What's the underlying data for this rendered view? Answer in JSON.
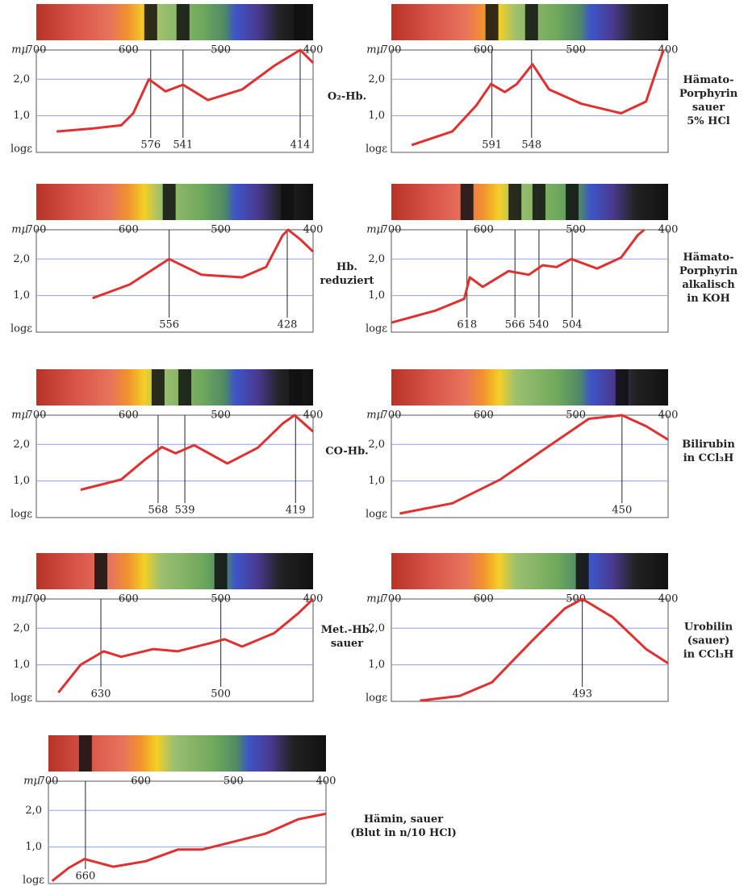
{
  "chart_data": [
    {
      "type": "line",
      "label": [
        "O₂-Hb."
      ],
      "x_label": "mμ",
      "y_label": "logε",
      "xlim": [
        700,
        400
      ],
      "xticks": [
        700,
        600,
        500,
        400
      ],
      "ylim": [
        0,
        2.8
      ],
      "yticks": [
        {
          "value": 1,
          "label": "1,0"
        },
        {
          "value": 2,
          "label": "2,0"
        }
      ],
      "color": "#e03030",
      "x": [
        678,
        640,
        608,
        595,
        578,
        560,
        541,
        514,
        477,
        442,
        414,
        400
      ],
      "values": [
        0.57,
        0.65,
        0.74,
        1.07,
        2.0,
        1.67,
        1.85,
        1.43,
        1.72,
        2.37,
        2.8,
        2.45
      ],
      "markers": [
        576,
        541,
        414
      ]
    },
    {
      "type": "line",
      "label": [
        "Hämato-",
        "Porphyrin",
        "sauer",
        "5% HCl"
      ],
      "x_label": "mμ",
      "y_label": "logε",
      "xlim": [
        700,
        400
      ],
      "xticks": [
        700,
        600,
        500,
        400
      ],
      "ylim": [
        0,
        2.8
      ],
      "yticks": [
        {
          "value": 1,
          "label": "1,0"
        },
        {
          "value": 2,
          "label": "2,0"
        }
      ],
      "color": "#e03030",
      "x": [
        678,
        634,
        608,
        592,
        577,
        564,
        547,
        529,
        494,
        451,
        424,
        411,
        405
      ],
      "values": [
        0.2,
        0.57,
        1.28,
        1.87,
        1.65,
        1.87,
        2.41,
        1.72,
        1.33,
        1.07,
        1.39,
        2.37,
        2.8
      ],
      "markers": [
        591,
        548
      ]
    },
    {
      "type": "line",
      "label": [
        "Hb.",
        "reduziert"
      ],
      "x_label": "mμ",
      "y_label": "logε",
      "xlim": [
        700,
        400
      ],
      "xticks": [
        700,
        600,
        500,
        400
      ],
      "ylim": [
        0,
        2.8
      ],
      "yticks": [
        {
          "value": 1,
          "label": "1,0"
        },
        {
          "value": 2,
          "label": "2,0"
        }
      ],
      "color": "#e03030",
      "x": [
        639,
        599,
        556,
        521,
        477,
        451,
        433,
        427,
        414,
        400
      ],
      "values": [
        0.93,
        1.3,
        2.0,
        1.57,
        1.5,
        1.78,
        2.65,
        2.8,
        2.54,
        2.2
      ],
      "markers": [
        556,
        428
      ]
    },
    {
      "type": "line",
      "label": [
        "Hämato-",
        "Porphyrin",
        "alkalisch",
        "in KOH"
      ],
      "x_label": "mμ",
      "y_label": "logε",
      "xlim": [
        700,
        400
      ],
      "xticks": [
        700,
        600,
        500,
        400
      ],
      "ylim": [
        0,
        2.8
      ],
      "yticks": [
        {
          "value": 1,
          "label": "1,0"
        },
        {
          "value": 2,
          "label": "2,0"
        }
      ],
      "color": "#e03030",
      "x": [
        700,
        652,
        621,
        615,
        601,
        573,
        551,
        536,
        521,
        505,
        477,
        451,
        433,
        426
      ],
      "values": [
        0.26,
        0.59,
        0.91,
        1.5,
        1.24,
        1.67,
        1.57,
        1.83,
        1.78,
        2.0,
        1.74,
        2.04,
        2.65,
        2.8
      ],
      "markers": [
        618,
        566,
        540,
        504
      ]
    },
    {
      "type": "line",
      "label": [
        "CO-Hb."
      ],
      "x_label": "mμ",
      "y_label": "logε",
      "xlim": [
        700,
        400
      ],
      "xticks": [
        700,
        600,
        500,
        400
      ],
      "ylim": [
        0,
        2.8
      ],
      "yticks": [
        {
          "value": 1,
          "label": "1,0"
        },
        {
          "value": 2,
          "label": "2,0"
        }
      ],
      "color": "#e03030",
      "x": [
        652,
        608,
        582,
        564,
        549,
        529,
        493,
        460,
        433,
        420,
        400
      ],
      "values": [
        0.76,
        1.04,
        1.59,
        1.93,
        1.76,
        1.98,
        1.48,
        1.91,
        2.57,
        2.8,
        2.35
      ],
      "markers": [
        568,
        539,
        419
      ]
    },
    {
      "type": "line",
      "label": [
        "Bilirubin",
        "in CCl₃H"
      ],
      "x_label": "mμ",
      "y_label": "logε",
      "xlim": [
        700,
        400
      ],
      "xticks": [
        700,
        600,
        500,
        400
      ],
      "ylim": [
        0,
        2.8
      ],
      "yticks": [
        {
          "value": 1,
          "label": "1,0"
        },
        {
          "value": 2,
          "label": "2,0"
        }
      ],
      "color": "#e03030",
      "x": [
        691,
        634,
        582,
        529,
        486,
        450,
        424,
        400
      ],
      "values": [
        0.11,
        0.39,
        1.04,
        1.96,
        2.7,
        2.8,
        2.5,
        2.13
      ],
      "markers": [
        450
      ]
    },
    {
      "type": "line",
      "label": [
        "Met.-Hb.",
        "sauer"
      ],
      "x_label": "mμ",
      "y_label": "logε",
      "xlim": [
        700,
        400
      ],
      "xticks": [
        700,
        600,
        500,
        400
      ],
      "ylim": [
        0,
        2.8
      ],
      "yticks": [
        {
          "value": 1,
          "label": "1,0"
        },
        {
          "value": 2,
          "label": "2,0"
        }
      ],
      "color": "#e03030",
      "x": [
        676,
        652,
        627,
        608,
        573,
        547,
        512,
        496,
        477,
        442,
        416,
        400
      ],
      "values": [
        0.24,
        1.0,
        1.37,
        1.22,
        1.43,
        1.37,
        1.59,
        1.7,
        1.5,
        1.87,
        2.41,
        2.8
      ],
      "markers": [
        630,
        500
      ]
    },
    {
      "type": "line",
      "label": [
        "Urobilin",
        "(sauer)",
        "in CCl₃H"
      ],
      "x_label": "mμ",
      "y_label": "logε",
      "xlim": [
        700,
        400
      ],
      "xticks": [
        700,
        600,
        500,
        400
      ],
      "ylim": [
        0,
        2.8
      ],
      "yticks": [
        {
          "value": 1,
          "label": "1,0"
        },
        {
          "value": 2,
          "label": "2,0"
        }
      ],
      "color": "#e03030",
      "x": [
        669,
        626,
        591,
        547,
        512,
        493,
        460,
        424,
        400
      ],
      "values": [
        0.02,
        0.15,
        0.52,
        1.67,
        2.54,
        2.8,
        2.3,
        1.43,
        1.04
      ],
      "markers": [
        493
      ]
    },
    {
      "type": "line",
      "label": [
        "Hämin, sauer",
        "(Blut in n/10 HCl)"
      ],
      "x_label": "mμ",
      "y_label": "logε",
      "xlim": [
        700,
        400
      ],
      "xticks": [
        700,
        600,
        500,
        400
      ],
      "ylim": [
        0,
        2.8
      ],
      "yticks": [
        {
          "value": 1,
          "label": "1,0"
        },
        {
          "value": 2,
          "label": "2,0"
        }
      ],
      "color": "#e03030",
      "x": [
        696,
        678,
        661,
        630,
        595,
        560,
        534,
        499,
        465,
        430,
        400
      ],
      "values": [
        0.07,
        0.43,
        0.67,
        0.46,
        0.61,
        0.93,
        0.93,
        1.15,
        1.37,
        1.76,
        1.91
      ],
      "markers": [
        660
      ]
    }
  ]
}
